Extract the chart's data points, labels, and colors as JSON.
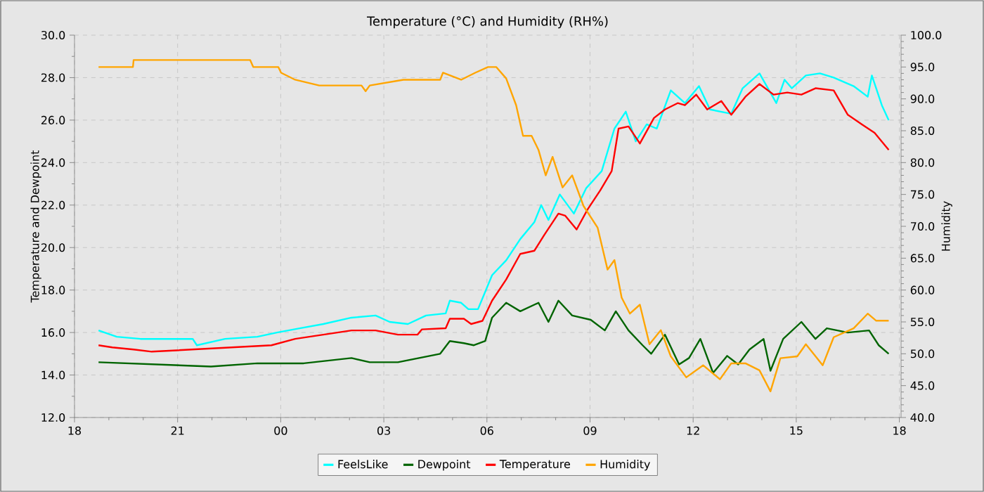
{
  "chart_data": {
    "type": "line",
    "title": "Temperature (°C) and Humidity (RH%)",
    "ylabel": "Temperature and Dewpoint",
    "y2label": "Humidity",
    "xlim": [
      18,
      42.05
    ],
    "ylim": [
      12,
      30
    ],
    "y2lim": [
      40,
      100
    ],
    "xticks": [
      {
        "value": 18,
        "label": "18"
      },
      {
        "value": 21,
        "label": "21"
      },
      {
        "value": 24,
        "label": "00"
      },
      {
        "value": 27,
        "label": "03"
      },
      {
        "value": 30,
        "label": "06"
      },
      {
        "value": 33,
        "label": "09"
      },
      {
        "value": 36,
        "label": "12"
      },
      {
        "value": 39,
        "label": "15"
      },
      {
        "value": 42,
        "label": "18"
      }
    ],
    "yticks": [
      {
        "value": 12,
        "label": "12.0"
      },
      {
        "value": 14,
        "label": "14.0"
      },
      {
        "value": 16,
        "label": "16.0"
      },
      {
        "value": 18,
        "label": "18.0"
      },
      {
        "value": 20,
        "label": "20.0"
      },
      {
        "value": 22,
        "label": "22.0"
      },
      {
        "value": 24,
        "label": "24.0"
      },
      {
        "value": 26,
        "label": "26.0"
      },
      {
        "value": 28,
        "label": "28.0"
      },
      {
        "value": 30,
        "label": "30.0"
      }
    ],
    "y2ticks": [
      {
        "value": 40,
        "label": "40.0"
      },
      {
        "value": 45,
        "label": "45.0"
      },
      {
        "value": 50,
        "label": "50.0"
      },
      {
        "value": 55,
        "label": "55.0"
      },
      {
        "value": 60,
        "label": "60.0"
      },
      {
        "value": 65,
        "label": "65.0"
      },
      {
        "value": 70,
        "label": "70.0"
      },
      {
        "value": 75,
        "label": "75.0"
      },
      {
        "value": 80,
        "label": "80.0"
      },
      {
        "value": 85,
        "label": "85.0"
      },
      {
        "value": 90,
        "label": "90.0"
      },
      {
        "value": 95,
        "label": "95.0"
      },
      {
        "value": 100,
        "label": "100.0"
      }
    ],
    "grid": true,
    "legend": "bottom",
    "series": [
      {
        "name": "FeelsLike",
        "color": "#00ffff",
        "x": [
          18.7,
          19.23,
          19.92,
          21.44,
          21.56,
          22.38,
          23.32,
          23.89,
          24.55,
          25.24,
          26.06,
          26.76,
          27.17,
          27.7,
          28.23,
          28.8,
          28.92,
          29.25,
          29.46,
          29.74,
          30.15,
          30.56,
          30.97,
          31.38,
          31.58,
          31.79,
          32.12,
          32.53,
          32.89,
          33.34,
          33.71,
          34.04,
          34.33,
          34.65,
          34.94,
          35.35,
          35.76,
          36.17,
          36.49,
          37.11,
          37.44,
          37.93,
          38.42,
          38.66,
          38.87,
          39.28,
          39.69,
          40.09,
          40.67,
          41.08,
          41.2,
          41.49,
          41.69
        ],
        "values": [
          16.1,
          15.8,
          15.7,
          15.7,
          15.4,
          15.7,
          15.8,
          16.0,
          16.2,
          16.4,
          16.7,
          16.8,
          16.5,
          16.4,
          16.8,
          16.9,
          17.5,
          17.4,
          17.1,
          17.1,
          18.7,
          19.4,
          20.4,
          21.2,
          22.0,
          21.3,
          22.5,
          21.6,
          22.8,
          23.6,
          25.6,
          26.4,
          25.0,
          25.8,
          25.6,
          27.4,
          26.8,
          27.6,
          26.5,
          26.3,
          27.5,
          28.2,
          26.8,
          27.9,
          27.5,
          28.1,
          28.2,
          28.0,
          27.6,
          27.1,
          28.1,
          26.7,
          26.0
        ]
      },
      {
        "name": "Dewpoint",
        "color": "#006400",
        "x": [
          18.7,
          21.97,
          23.32,
          24.67,
          26.06,
          26.59,
          27.41,
          28.64,
          28.92,
          29.33,
          29.62,
          29.95,
          30.15,
          30.56,
          30.97,
          31.5,
          31.79,
          32.08,
          32.48,
          33.02,
          33.43,
          33.75,
          34.12,
          34.53,
          34.78,
          35.18,
          35.59,
          35.88,
          36.21,
          36.58,
          36.99,
          37.31,
          37.64,
          38.05,
          38.25,
          38.62,
          39.15,
          39.56,
          39.89,
          40.5,
          41.12,
          41.4,
          41.69
        ],
        "values": [
          14.6,
          14.4,
          14.55,
          14.55,
          14.8,
          14.6,
          14.6,
          15.0,
          15.6,
          15.5,
          15.4,
          15.6,
          16.7,
          17.4,
          17.0,
          17.4,
          16.5,
          17.5,
          16.8,
          16.6,
          16.1,
          17.0,
          16.1,
          15.4,
          15.0,
          15.9,
          14.5,
          14.8,
          15.7,
          14.1,
          14.9,
          14.5,
          15.2,
          15.7,
          14.2,
          15.7,
          16.5,
          15.7,
          16.2,
          16.0,
          16.1,
          15.4,
          15.0
        ]
      },
      {
        "name": "Temperature",
        "color": "#ff0000",
        "x": [
          18.7,
          19.1,
          19.72,
          20.25,
          23.73,
          24.42,
          25.24,
          26.06,
          26.76,
          27.41,
          27.98,
          28.11,
          28.8,
          28.92,
          29.33,
          29.54,
          29.87,
          30.15,
          30.56,
          30.97,
          31.38,
          31.67,
          32.08,
          32.28,
          32.61,
          32.93,
          33.3,
          33.63,
          33.83,
          34.12,
          34.45,
          34.86,
          35.18,
          35.55,
          35.76,
          36.09,
          36.41,
          36.82,
          37.11,
          37.52,
          37.93,
          38.34,
          38.74,
          39.15,
          39.56,
          40.09,
          40.5,
          40.91,
          41.28,
          41.69
        ],
        "values": [
          15.4,
          15.3,
          15.2,
          15.1,
          15.4,
          15.7,
          15.9,
          16.1,
          16.1,
          15.9,
          15.9,
          16.15,
          16.2,
          16.65,
          16.65,
          16.4,
          16.55,
          17.5,
          18.5,
          19.7,
          19.85,
          20.6,
          21.6,
          21.5,
          20.85,
          21.8,
          22.7,
          23.6,
          25.6,
          25.7,
          24.9,
          26.1,
          26.5,
          26.8,
          26.7,
          27.2,
          26.5,
          26.9,
          26.25,
          27.1,
          27.7,
          27.2,
          27.3,
          27.2,
          27.5,
          27.4,
          26.25,
          25.8,
          25.4,
          24.6
        ]
      },
      {
        "name": "Humidity",
        "color": "#ffa500",
        "axis": "y2",
        "x": [
          18.7,
          19.7,
          19.72,
          23.11,
          23.2,
          23.93,
          24.01,
          24.42,
          25.12,
          26.35,
          26.47,
          26.59,
          27.57,
          28.64,
          28.72,
          29.25,
          29.66,
          30.03,
          30.27,
          30.56,
          30.85,
          31.05,
          31.3,
          31.5,
          31.71,
          31.91,
          32.2,
          32.48,
          32.81,
          33.22,
          33.51,
          33.71,
          33.92,
          34.16,
          34.45,
          34.73,
          35.06,
          35.35,
          35.8,
          36.29,
          36.78,
          37.11,
          37.52,
          37.93,
          38.25,
          38.54,
          39.03,
          39.28,
          39.77,
          40.09,
          40.67,
          41.08,
          41.32,
          41.69
        ],
        "values": [
          95.0,
          95.0,
          96.1,
          96.1,
          95.0,
          95.0,
          94.1,
          93.0,
          92.1,
          92.1,
          91.2,
          92.1,
          93.0,
          93.0,
          94.1,
          93.0,
          94.1,
          95.0,
          95.0,
          93.2,
          89.0,
          84.2,
          84.2,
          82.0,
          78.0,
          80.9,
          76.1,
          78.0,
          73.2,
          69.8,
          63.2,
          64.7,
          58.8,
          56.3,
          57.7,
          51.5,
          53.7,
          49.6,
          46.3,
          48.2,
          46.0,
          48.5,
          48.5,
          47.4,
          44.1,
          49.3,
          49.6,
          51.5,
          48.2,
          52.6,
          54.0,
          56.3,
          55.2,
          55.2
        ]
      }
    ]
  }
}
